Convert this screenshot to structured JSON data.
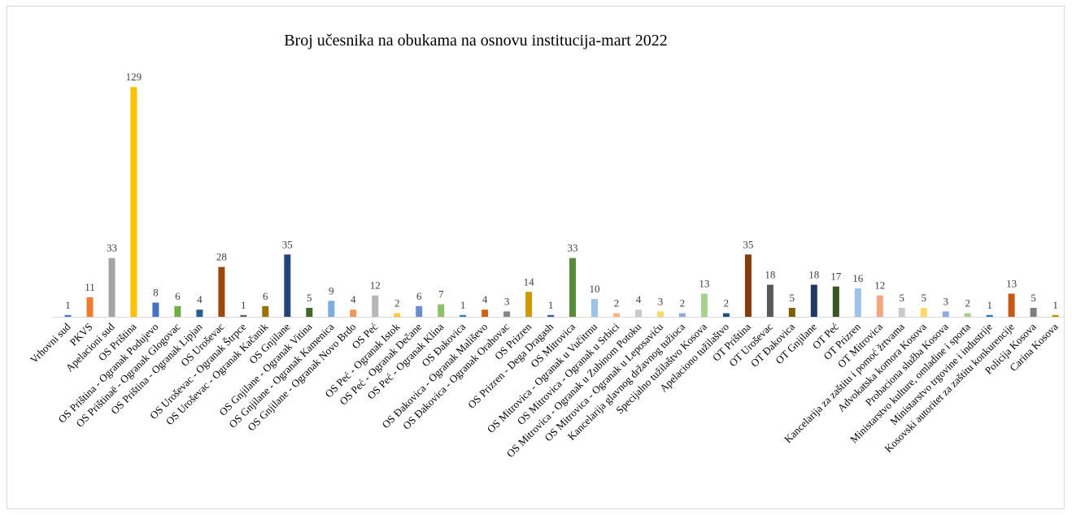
{
  "chart_data": {
    "type": "bar",
    "title": "Broj učesnika na obukama na osnovu institucija-mart  2022",
    "xlabel": "",
    "ylabel": "",
    "ylim": [
      0,
      130
    ],
    "grid": false,
    "legend": "none",
    "categories": [
      "Vrhovni sud",
      "PKVS",
      "Apelacioni sud",
      "OS Priština",
      "OS Priština - Ogranak Podujevo",
      "OS Prištinaë - Ogranak Glogovac",
      "OS Priština - Ogranak Lipjan",
      "OS Uroševac",
      "OS Uroševac - Ogranak Štrpce",
      "OS Uroševac - Ogranak Kačanik",
      "OS Gnjilane",
      "OS Gnjilane - Ogranak Vitina",
      "OS Gnjilane - Ogranak Kamenica",
      "OS Gnjilane - Ogranak Novo Brdo",
      "OS Peć",
      "OS Peć - Ogranak Istok",
      "OS Peć - Ogranak Dečane",
      "OS Peć - Ogranak Klina",
      "OS Đakovica",
      "OS Đakovica - Ogranak Mališevo",
      "OS Đakovica - Ogranak Orahovac",
      "OS Prizren",
      "OS Prizren - Dega Dragash",
      "OS Mitrovica",
      "OS Mitrovica - Ogranak u Vučitrnu",
      "OS Mitrovica - Ogranak u Srbici",
      "OS Mitrovica - Ogranak u Zubinom Potoku",
      "OS Mitrovica - Ogranak u Leposaviću",
      "Kancelarija glavnog državnog tužioca",
      "Specijalno tužilaštvo Kosova",
      "Apelaciono tužilaštvo",
      "OT Priština",
      "OT Uroševac",
      "OT Đakovica",
      "OT Gnjilane",
      "OT Peć",
      "OT Prizren",
      "OT Mitrovica",
      "Kancelarija  za zaštitu i pomoć žrtvama",
      "Advokatska komora Kosova",
      "Probaciona služba Kosova",
      "Ministarstvo kulture, omladine i sporta",
      "Ministarstvo trgovine i industrije",
      "Kosovski autoritet za zaštitu konkurencije",
      "Policija Kosova",
      "Carina Kosova"
    ],
    "values": [
      1,
      11,
      33,
      129,
      8,
      6,
      4,
      28,
      1,
      6,
      35,
      5,
      9,
      4,
      12,
      2,
      6,
      7,
      1,
      4,
      3,
      14,
      1,
      33,
      10,
      2,
      4,
      3,
      2,
      13,
      2,
      35,
      18,
      5,
      18,
      17,
      16,
      12,
      5,
      5,
      3,
      2,
      1,
      13,
      5,
      1
    ],
    "colors": [
      "#4472C4",
      "#ED7D31",
      "#A5A5A5",
      "#FFC000",
      "#4472C4",
      "#70AD47",
      "#255E91",
      "#9E480E",
      "#636363",
      "#997300",
      "#264478",
      "#43682B",
      "#7CAFDD",
      "#F1975A",
      "#B7B7B7",
      "#FFCD33",
      "#698ED0",
      "#8CC168",
      "#327DC2",
      "#D26012",
      "#848484",
      "#CC9A00",
      "#335AA1",
      "#5A8B39",
      "#9DC3E6",
      "#F4B183",
      "#C9C9C9",
      "#FFD966",
      "#8FAADC",
      "#A9D18E",
      "#1F4E79",
      "#843C0C",
      "#595959",
      "#7F6000",
      "#203864",
      "#375623",
      "#9DC3E6",
      "#F4A582",
      "#C9C9C9",
      "#FFD966",
      "#8FAADC",
      "#A9D18E",
      "#2E75B6",
      "#C55A11",
      "#7F7F7F",
      "#BF9000"
    ]
  }
}
